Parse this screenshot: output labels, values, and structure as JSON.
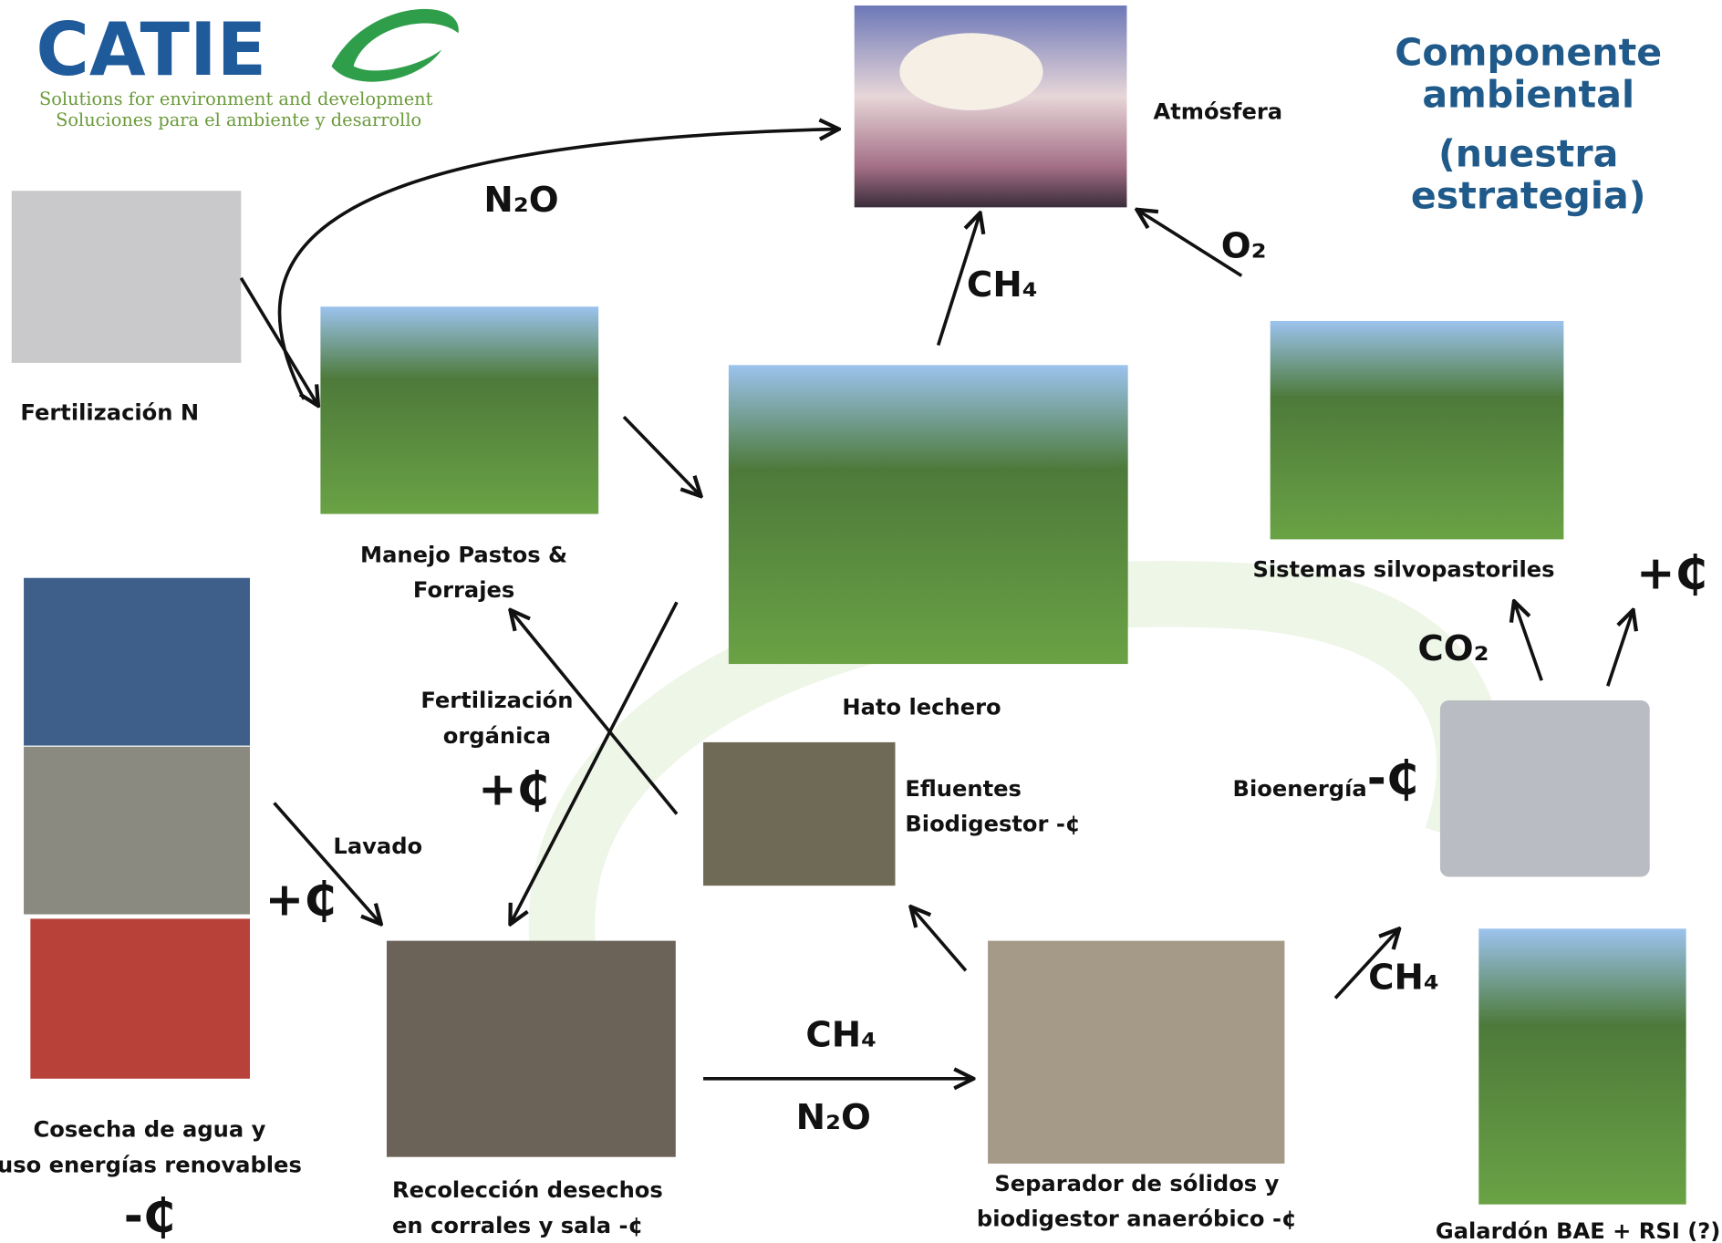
{
  "logo": {
    "name": "CATIE",
    "tagline": [
      "Solutions for environment and development",
      "Soluciones para el ambiente y desarrollo"
    ]
  },
  "title": [
    "Componente",
    "ambiental",
    "(nuestra",
    "estrategia)"
  ],
  "labels": {
    "atmosphere": "Atmósfera",
    "fertilization": "Fertilización N",
    "pasture": [
      "Manejo Pastos &",
      "Forrajes"
    ],
    "herd": "Hato lechero",
    "silvopastoral": "Sistemas silvopastoriles",
    "effluent": [
      "Efluentes",
      "Biodigestor -¢"
    ],
    "bioenergy": "Bioenergía",
    "water": [
      "Cosecha de agua y",
      "uso energías renovables"
    ],
    "collection": [
      "Recolección desechos",
      "en corrales y sala  -¢"
    ],
    "separator": [
      "Separador de sólidos  y",
      "biodigestor anaeróbico -¢"
    ],
    "award": "Galardón BAE + RSI (?)",
    "organic": [
      "Fertilización",
      "orgánica"
    ],
    "washing": "Lavado"
  },
  "costs": {
    "organic": "+₵",
    "washing": "+₵",
    "silvopastoral": "+₵",
    "bioenergy": "-₵",
    "water": "-₵"
  },
  "flows": {
    "fertilizer_n2o": "N₂O",
    "herd_ch4": "CH₄",
    "o2": "O₂",
    "co2": "CO₂",
    "corrales_ch4": "CH₄",
    "corrales_n2o": "N₂O",
    "biogas_ch4": "CH₄"
  }
}
